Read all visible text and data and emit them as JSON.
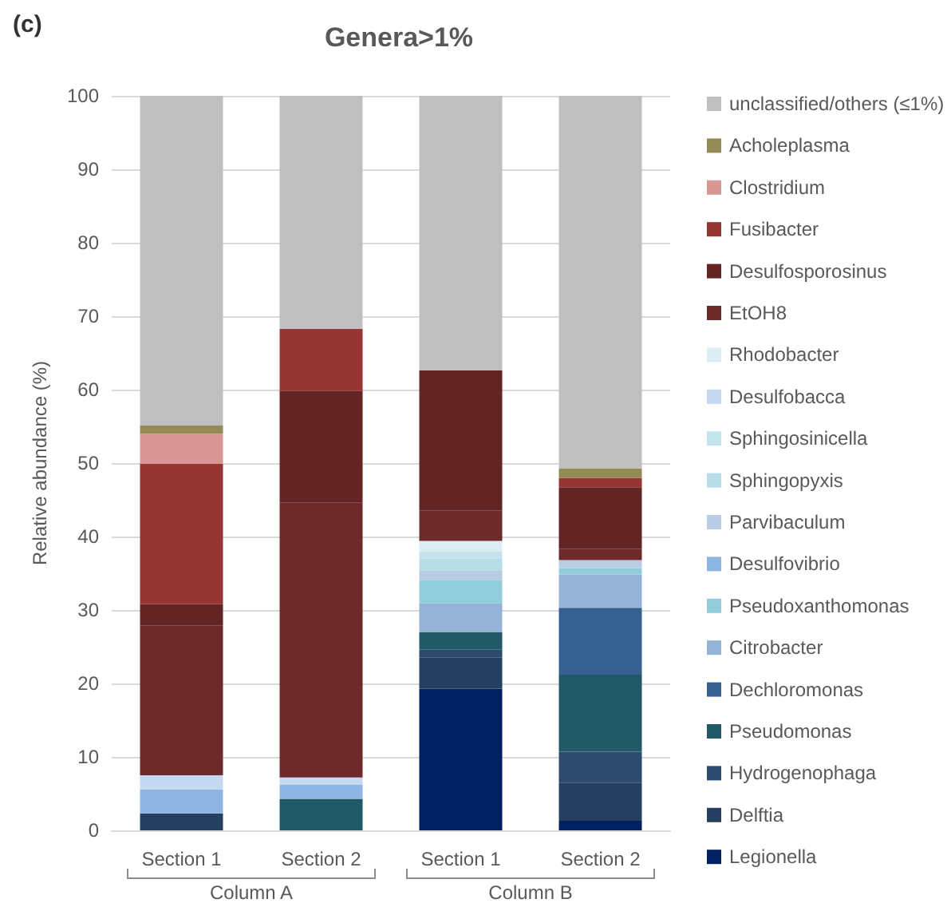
{
  "chart_data": {
    "type": "bar",
    "title": "Genera>1%",
    "ylabel": "Relative abundance (%)",
    "stacked": true,
    "grid": "y",
    "legend": "right",
    "categories": [
      "Section 1",
      "Section 2",
      "Section 1",
      "Section 2"
    ],
    "annotations": [
      "(c)",
      "Column A",
      "Column B"
    ],
    "ylim": [
      0,
      100
    ],
    "yticks": [
      0,
      10,
      20,
      30,
      40,
      50,
      60,
      70,
      80,
      90,
      100
    ],
    "series": [
      {
        "name": "Legionella",
        "color": "#002060",
        "values": [
          null,
          null,
          19.3,
          1.3
        ]
      },
      {
        "name": "Delftia",
        "color": "#243f60",
        "values": [
          2.3,
          null,
          4.2,
          5.2
        ]
      },
      {
        "name": "Hydrogenophaga",
        "color": "#2e4a6e",
        "values": [
          null,
          null,
          1.1,
          4.2
        ]
      },
      {
        "name": "Pseudomonas",
        "color": "#215967",
        "values": [
          null,
          4.3,
          2.4,
          10.5
        ]
      },
      {
        "name": "Dechloromonas",
        "color": "#366092",
        "values": [
          null,
          null,
          null,
          9.1
        ]
      },
      {
        "name": "Citrobacter",
        "color": "#95b3d7",
        "values": [
          null,
          null,
          3.9,
          4.5
        ]
      },
      {
        "name": "Pseudoxanthomonas",
        "color": "#92cddc",
        "values": [
          null,
          null,
          3.2,
          0.9
        ]
      },
      {
        "name": "Desulfovibrio",
        "color": "#8db4e2",
        "values": [
          3.3,
          1.9,
          null,
          null
        ]
      },
      {
        "name": "Parvibaculum",
        "color": "#b8cce4",
        "values": [
          null,
          null,
          1.3,
          1.1
        ]
      },
      {
        "name": "Sphingopyxis",
        "color": "#b7dee8",
        "values": [
          null,
          null,
          1.6,
          null
        ]
      },
      {
        "name": "Sphingosinicella",
        "color": "#c3e4ec",
        "values": [
          null,
          null,
          1.0,
          null
        ]
      },
      {
        "name": "Desulfobacca",
        "color": "#c5d9f1",
        "values": [
          1.9,
          1.0,
          null,
          null
        ]
      },
      {
        "name": "Rhodobacter",
        "color": "#dbeef4",
        "values": [
          null,
          null,
          1.4,
          null
        ]
      },
      {
        "name": "EtOH8",
        "color": "#6e2a2a",
        "values": [
          20.4,
          37.4,
          4.1,
          1.5
        ]
      },
      {
        "name": "Desulfosporosinus",
        "color": "#632523",
        "values": [
          2.9,
          15.2,
          19.1,
          8.4
        ]
      },
      {
        "name": "Fusibacter",
        "color": "#963634",
        "values": [
          19.1,
          8.5,
          null,
          1.3
        ]
      },
      {
        "name": "Clostridium",
        "color": "#da9694",
        "values": [
          4.1,
          null,
          null,
          null
        ]
      },
      {
        "name": "Acholeplasma",
        "color": "#948a54",
        "values": [
          1.1,
          null,
          null,
          1.3
        ]
      },
      {
        "name": "unclassified/others (≤1%)",
        "color": "#bfbfbf",
        "values": [
          44.9,
          31.7,
          37.4,
          50.7
        ]
      }
    ]
  }
}
